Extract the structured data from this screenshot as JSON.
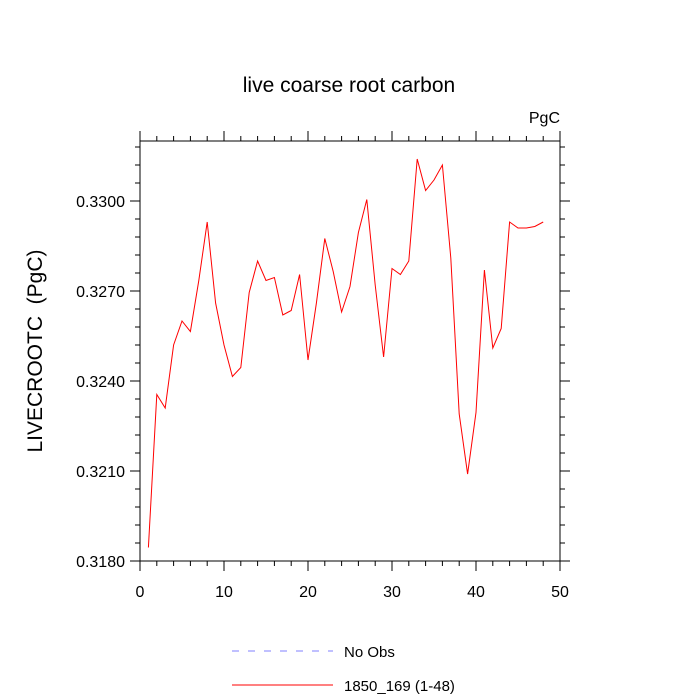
{
  "chart_data": {
    "type": "line",
    "title": "live coarse root carbon",
    "units_label": "PgC",
    "xlabel": "",
    "ylabel": "LIVECROOTC  (PgC)",
    "xlim": [
      0,
      50
    ],
    "ylim": [
      0.318,
      0.332
    ],
    "xticks": [
      0,
      10,
      20,
      30,
      40,
      50
    ],
    "xtick_labels": [
      "0",
      "10",
      "20",
      "30",
      "40",
      "50"
    ],
    "yticks": [
      0.318,
      0.321,
      0.324,
      0.327,
      0.33
    ],
    "ytick_labels": [
      "0.3180",
      "0.3210",
      "0.3240",
      "0.3270",
      "0.3300"
    ],
    "grid": false,
    "legend_position": "bottom",
    "legend": [
      {
        "name": "No Obs",
        "color": "#8080ff",
        "style": "dashed"
      },
      {
        "name": "1850_169 (1-48)",
        "color": "#ff0000",
        "style": "solid"
      }
    ],
    "series": [
      {
        "name": "1850_169 (1-48)",
        "color": "#ff0000",
        "x": [
          1,
          2,
          3,
          4,
          5,
          6,
          7,
          8,
          9,
          10,
          11,
          12,
          13,
          14,
          15,
          16,
          17,
          18,
          19,
          20,
          21,
          22,
          23,
          24,
          25,
          26,
          27,
          28,
          29,
          30,
          31,
          32,
          33,
          34,
          35,
          36,
          37,
          38,
          39,
          40,
          41,
          42,
          43,
          44,
          45,
          46,
          47,
          48
        ],
        "y": [
          0.31845,
          0.32355,
          0.3231,
          0.3252,
          0.326,
          0.32565,
          0.32735,
          0.3293,
          0.3266,
          0.3252,
          0.32415,
          0.32445,
          0.32695,
          0.328,
          0.32735,
          0.32745,
          0.3262,
          0.32635,
          0.32755,
          0.3247,
          0.3266,
          0.32875,
          0.32765,
          0.3263,
          0.32715,
          0.32895,
          0.33005,
          0.3272,
          0.3248,
          0.32775,
          0.32755,
          0.328,
          0.3314,
          0.33035,
          0.3307,
          0.3312,
          0.3281,
          0.3229,
          0.3209,
          0.32295,
          0.3277,
          0.3251,
          0.32575,
          0.3293,
          0.3291,
          0.3291,
          0.32915,
          0.3293
        ]
      }
    ]
  }
}
